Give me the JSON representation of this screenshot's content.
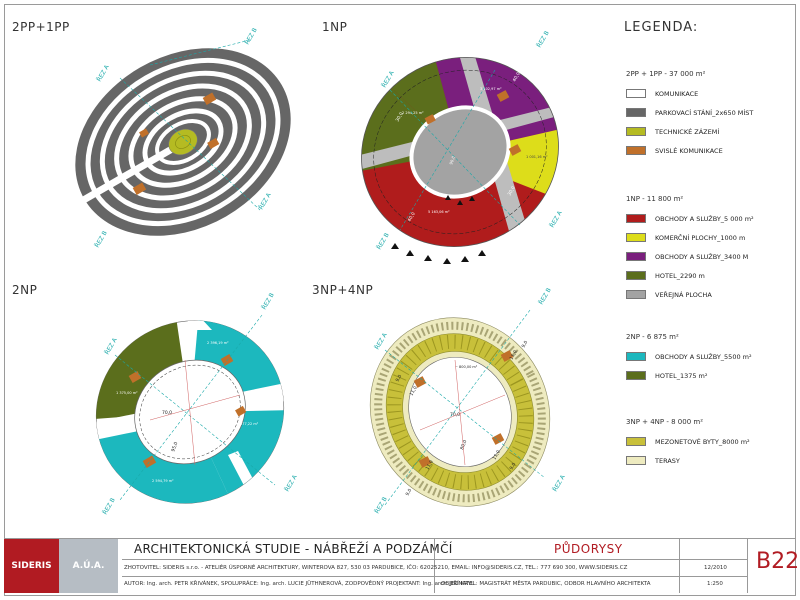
{
  "quadrants": [
    {
      "title": "2PP+1PP"
    },
    {
      "title": "1NP"
    },
    {
      "title": "2NP"
    },
    {
      "title": "3NP+4NP"
    }
  ],
  "section_labels": {
    "a": "ŘEZ A",
    "b": "ŘEZ B"
  },
  "area_labels": {
    "np1_top": "3 402,97 m²",
    "np1_left": "2 294,25 m²",
    "np1_right": "1 001,16 m²",
    "np1_bottom": "5 163,06 m²",
    "np2_top": "2 396,19 m²",
    "np2_left": "1 375,00 m²",
    "np2_right": "577,22 m²",
    "np2_bottom": "2 594,79 m²",
    "np3_top": "~ 800,00 m²",
    "center": "PLOCHA",
    "dim_90": "90,0",
    "dim_40": "40,0",
    "dim_30": "30,0",
    "dim_70": "70,0",
    "dim_95": "95,0",
    "dim_80": "80,0",
    "dim_11": "11,0",
    "dim_9": "9,0"
  },
  "colors": {
    "parking": "#666666",
    "technical": "#b5bb22",
    "stairs": "#c0702a",
    "shops": "#b01c1c",
    "commercial": "#dddd1a",
    "shops_purple": "#7a1f7d",
    "hotel": "#5b6e1c",
    "public": "#a3a3a3",
    "shops_2np": "#1cb8be",
    "hotel_2np": "#5b6e1c",
    "apartments": "#c8c03a",
    "terraces": "#eeebc0",
    "section_line": "#1aa9a9"
  },
  "legend": {
    "title": "LEGENDA:",
    "groups": [
      {
        "header": "2PP + 1PP - 37 000 m²",
        "items": [
          {
            "label": "KOMUNIKACE",
            "color": "#ffffff"
          },
          {
            "label": "PARKOVACÍ STÁNÍ_2x650 MÍST",
            "color": "#666666"
          },
          {
            "label": "TECHNICKÉ ZÁZEMÍ",
            "color": "#b5bb22"
          },
          {
            "label": "SVISLÉ KOMUNIKACE",
            "color": "#c0702a"
          }
        ]
      },
      {
        "header": "1NP - 11 800 m²",
        "items": [
          {
            "label": "OBCHODY A SLUŽBY_5 000 m²",
            "color": "#b01c1c"
          },
          {
            "label": "KOMERČNÍ PLOCHY_1000 m",
            "color": "#dddd1a"
          },
          {
            "label": "OBCHODY A SLUŽBY_3400 M",
            "color": "#7a1f7d"
          },
          {
            "label": "HOTEL_2290 m",
            "color": "#5b6e1c"
          },
          {
            "label": "VEŘEJNÁ PLOCHA",
            "color": "#a3a3a3"
          }
        ]
      },
      {
        "header": "2NP - 6 875 m²",
        "items": [
          {
            "label": "OBCHODY A SLUŽBY_5500 m²",
            "color": "#1cb8be"
          },
          {
            "label": "HOTEL_1375 m²",
            "color": "#5b6e1c"
          }
        ]
      },
      {
        "header": "3NP + 4NP - 8 000 m²",
        "items": [
          {
            "label": "MEZONETOVÉ BYTY_8000 m²",
            "color": "#c8c03a"
          },
          {
            "label": "TERASY",
            "color": "#eeebc0"
          }
        ]
      }
    ]
  },
  "footer": {
    "logo_left": "SIDERIS",
    "logo_right": "A.Ú.A.",
    "title": "ARCHITEKTONICKÁ STUDIE - NÁBŘEŽÍ A PODZÁMČÍ",
    "sheet_title": "PŮDORYSY",
    "contractor": "ZHOTOVITEL: SIDERIS s.r.o. - ATELIÉR ÚSPORNÉ ARCHITEKTURY, WINTEROVA 827, 530 03 PARDUBICE, IČO: 62025210, EMAIL: INFO@SIDERIS.CZ, TEL.: 777 690 300, WWW.SIDERIS.CZ",
    "authors": "AUTOR: Ing. arch. PETR KŘIVÁNEK, SPOLUPRÁCE: Ing. arch. LUCIE JÜTHNEROVÁ, ZODPOVĚDNÝ PROJEKTANT: Ing. arch. JIŘÍ KRYL",
    "client": "OBJEDNATEL: MAGISTRÁT MĚSTA PARDUBIC, ODBOR HLAVNÍHO ARCHITEKTA",
    "date": "12/2010",
    "scale": "1:250",
    "code": "B22"
  }
}
